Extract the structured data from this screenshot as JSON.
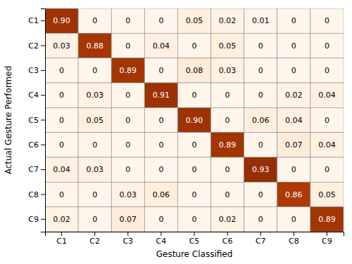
{
  "chart_data": {
    "type": "heatmap",
    "x_label": "Gesture Classified",
    "y_label": "Actual Gesture Performed",
    "categories": [
      "C1",
      "C2",
      "C3",
      "C4",
      "C5",
      "C6",
      "C7",
      "C8",
      "C9"
    ],
    "values": [
      [
        0.9,
        0,
        0,
        0,
        0.05,
        0.02,
        0.01,
        0,
        0
      ],
      [
        0.03,
        0.88,
        0,
        0.04,
        0,
        0.05,
        0,
        0,
        0
      ],
      [
        0,
        0,
        0.89,
        0,
        0.08,
        0.03,
        0,
        0,
        0
      ],
      [
        0,
        0.03,
        0,
        0.91,
        0,
        0,
        0,
        0.02,
        0.04
      ],
      [
        0,
        0.05,
        0,
        0,
        0.9,
        0,
        0.06,
        0.04,
        0
      ],
      [
        0,
        0,
        0,
        0,
        0,
        0.89,
        0,
        0.07,
        0.04
      ],
      [
        0.04,
        0.03,
        0,
        0,
        0,
        0,
        0.93,
        0,
        0
      ],
      [
        0,
        0,
        0.03,
        0.06,
        0,
        0,
        0,
        0.86,
        0.05
      ],
      [
        0.02,
        0,
        0.07,
        0,
        0,
        0.02,
        0,
        0,
        0.89
      ]
    ],
    "value_labels": [
      [
        "0.90",
        "0",
        "0",
        "0",
        "0.05",
        "0.02",
        "0.01",
        "0",
        "0"
      ],
      [
        "0.03",
        "0.88",
        "0",
        "0.04",
        "0",
        "0.05",
        "0",
        "0",
        "0"
      ],
      [
        "0",
        "0",
        "0.89",
        "0",
        "0.08",
        "0.03",
        "0",
        "0",
        "0"
      ],
      [
        "0",
        "0.03",
        "0",
        "0.91",
        "0",
        "0",
        "0",
        "0.02",
        "0.04"
      ],
      [
        "0",
        "0.05",
        "0",
        "0",
        "0.90",
        "0",
        "0.06",
        "0.04",
        "0"
      ],
      [
        "0",
        "0",
        "0",
        "0",
        "0",
        "0.89",
        "0",
        "0.07",
        "0.04"
      ],
      [
        "0.04",
        "0.03",
        "0",
        "0",
        "0",
        "0",
        "0.93",
        "0",
        "0"
      ],
      [
        "0",
        "0",
        "0.03",
        "0.06",
        "0",
        "0",
        "0",
        "0.86",
        "0.05"
      ],
      [
        "0.02",
        "0",
        "0.07",
        "0",
        "0",
        "0.02",
        "0",
        "0",
        "0.89"
      ]
    ],
    "color_range": [
      0,
      1
    ],
    "data_labels": true,
    "grid": true
  }
}
